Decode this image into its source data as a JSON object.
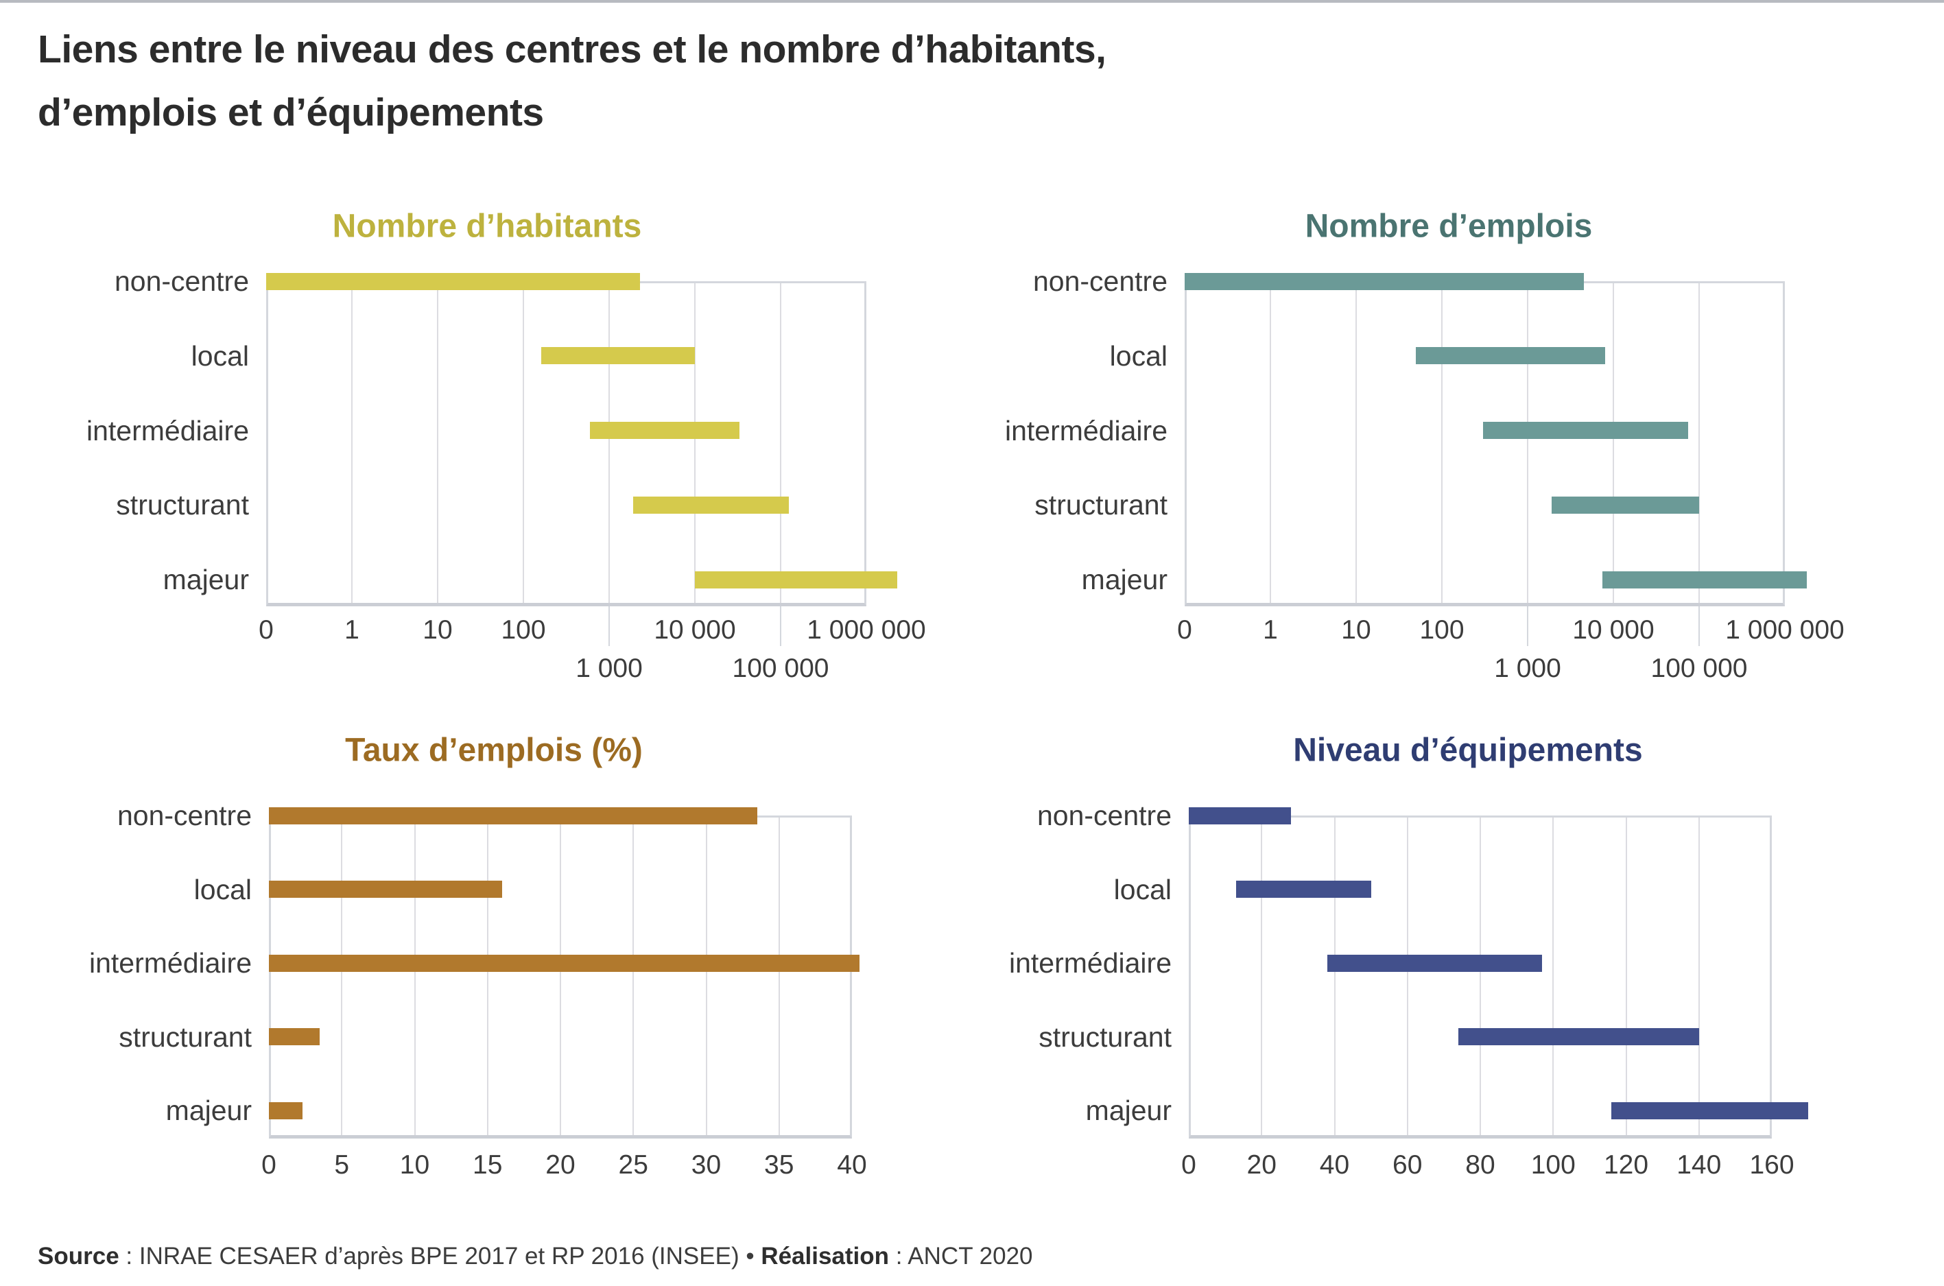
{
  "page": {
    "bg": "#ffffff",
    "top_rule_color": "#b7bac0",
    "title_lines": [
      "Liens entre le niveau des centres et le nombre d’habitants,",
      "d’emplois et d’équipements"
    ],
    "title_color": "#2c2c2c",
    "text_color": "#3c3c3c",
    "grid_color": "#dcdce1",
    "frame_color": "#d4d7dd",
    "axis_color": "#cbced5",
    "source": {
      "label_source": "Source",
      "sep_source": "  : ",
      "text_source": "INRAE CESAER d’après BPE 2017 et RP 2016 (INSEE)",
      "bullet": " • ",
      "label_realisation": "Réalisation",
      "sep_realisation": " : ",
      "text_realisation": "ANCT 2020"
    }
  },
  "chart_data": [
    {
      "id": "habitants",
      "type": "bar",
      "subtype": "horizontal-range-bars",
      "scale": "log-decade",
      "decades": 7,
      "title": "Nombre d’habitants",
      "bar_color": "#d5ca4c",
      "title_color": "#bdb23e",
      "grid": true,
      "categories": [
        "non-centre",
        "local",
        "intermédiaire",
        "structurant",
        "majeur"
      ],
      "ranges": [
        [
          0,
          2300
        ],
        [
          160,
          10000
        ],
        [
          600,
          33000
        ],
        [
          1900,
          125000
        ],
        [
          10000,
          2300000
        ]
      ],
      "xticks": [
        {
          "label": "0",
          "unit": 0,
          "row": 1
        },
        {
          "label": "1",
          "unit": 1,
          "row": 1
        },
        {
          "label": "10",
          "unit": 2,
          "row": 1
        },
        {
          "label": "100",
          "unit": 3,
          "row": 1
        },
        {
          "label": "1 000",
          "unit": 4,
          "row": 2,
          "leader": true
        },
        {
          "label": "10 000",
          "unit": 5,
          "row": 1
        },
        {
          "label": "100 000",
          "unit": 6,
          "row": 2,
          "leader": true
        },
        {
          "label": "1 000 000",
          "unit": 7,
          "row": 1
        }
      ]
    },
    {
      "id": "emplois",
      "type": "bar",
      "subtype": "horizontal-range-bars",
      "scale": "log-decade",
      "decades": 7,
      "title": "Nombre d’emplois",
      "bar_color": "#6b9a97",
      "title_color": "#4a7471",
      "grid": true,
      "categories": [
        "non-centre",
        "local",
        "intermédiaire",
        "structurant",
        "majeur"
      ],
      "ranges": [
        [
          0,
          4500
        ],
        [
          50,
          8000
        ],
        [
          300,
          75000
        ],
        [
          1900,
          100000
        ],
        [
          7500,
          1800000
        ]
      ],
      "xticks": [
        {
          "label": "0",
          "unit": 0,
          "row": 1
        },
        {
          "label": "1",
          "unit": 1,
          "row": 1
        },
        {
          "label": "10",
          "unit": 2,
          "row": 1
        },
        {
          "label": "100",
          "unit": 3,
          "row": 1
        },
        {
          "label": "1 000",
          "unit": 4,
          "row": 2,
          "leader": true
        },
        {
          "label": "10 000",
          "unit": 5,
          "row": 1
        },
        {
          "label": "100 000",
          "unit": 6,
          "row": 2,
          "leader": true
        },
        {
          "label": "1 000 000",
          "unit": 7,
          "row": 1
        }
      ]
    },
    {
      "id": "taux-emplois",
      "type": "bar",
      "subtype": "horizontal-bars",
      "scale": "linear",
      "xmax": 40,
      "title": "Taux d’emplois (%)",
      "bar_color": "#b1792d",
      "title_color": "#9c6b22",
      "grid": true,
      "categories": [
        "non-centre",
        "local",
        "intermédiaire",
        "structurant",
        "majeur"
      ],
      "ranges": [
        [
          0,
          33.5
        ],
        [
          0,
          16
        ],
        [
          0,
          40.5
        ],
        [
          0,
          3.5
        ],
        [
          0,
          2.3
        ]
      ],
      "xticks": [
        {
          "label": "0",
          "value": 0,
          "row": 1
        },
        {
          "label": "5",
          "value": 5,
          "row": 1
        },
        {
          "label": "10",
          "value": 10,
          "row": 1
        },
        {
          "label": "15",
          "value": 15,
          "row": 1
        },
        {
          "label": "20",
          "value": 20,
          "row": 1
        },
        {
          "label": "25",
          "value": 25,
          "row": 1
        },
        {
          "label": "30",
          "value": 30,
          "row": 1
        },
        {
          "label": "35",
          "value": 35,
          "row": 1
        },
        {
          "label": "40",
          "value": 40,
          "row": 1
        }
      ]
    },
    {
      "id": "equipements",
      "type": "bar",
      "subtype": "horizontal-range-bars",
      "scale": "linear",
      "xmax": 160,
      "title": "Niveau d’équipements",
      "bar_color": "#42508c",
      "title_color": "#2f3d72",
      "grid": true,
      "categories": [
        "non-centre",
        "local",
        "intermédiaire",
        "structurant",
        "majeur"
      ],
      "ranges": [
        [
          0,
          28
        ],
        [
          13,
          50
        ],
        [
          38,
          97
        ],
        [
          74,
          140
        ],
        [
          116,
          170
        ]
      ],
      "xticks": [
        {
          "label": "0",
          "value": 0,
          "row": 1
        },
        {
          "label": "20",
          "value": 20,
          "row": 1
        },
        {
          "label": "40",
          "value": 40,
          "row": 1
        },
        {
          "label": "60",
          "value": 60,
          "row": 1
        },
        {
          "label": "80",
          "value": 80,
          "row": 1
        },
        {
          "label": "100",
          "value": 100,
          "row": 1
        },
        {
          "label": "120",
          "value": 120,
          "row": 1
        },
        {
          "label": "140",
          "value": 140,
          "row": 1
        },
        {
          "label": "160",
          "value": 160,
          "row": 1
        }
      ]
    }
  ]
}
